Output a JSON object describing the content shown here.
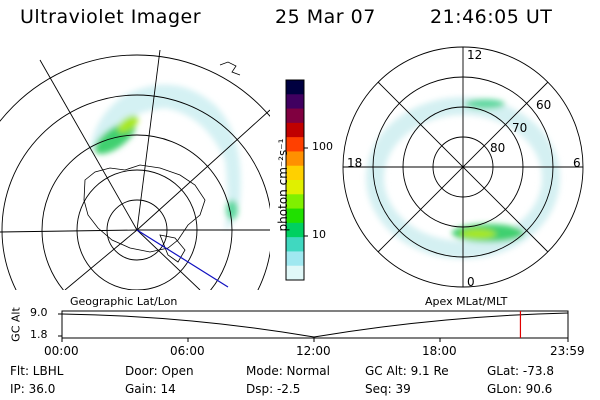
{
  "header": {
    "title": "Ultraviolet Imager",
    "date": "25 Mar 07",
    "time": "21:46:05 UT"
  },
  "colorbar": {
    "unit_label": "photon cm⁻²s⁻¹",
    "ticks": [
      "100",
      "10"
    ],
    "colors": [
      "#000040",
      "#400060",
      "#800040",
      "#c00000",
      "#ff4000",
      "#ff9000",
      "#ffd000",
      "#e0f000",
      "#80f000",
      "#20e000",
      "#00d060",
      "#40d8c0",
      "#a0e8f0",
      "#e0f8f8"
    ]
  },
  "left_panel": {
    "label": "Geographic Lat/Lon"
  },
  "right_panel": {
    "label": "Apex MLat/MLT",
    "mlt_labels": {
      "top": "12",
      "left": "18",
      "right": "6",
      "bottom": "0"
    },
    "lat_labels": [
      "60",
      "70",
      "80"
    ]
  },
  "timeline": {
    "ylabel": "GC Alt",
    "y_ticks": [
      "9.0",
      "1.8"
    ],
    "x_ticks": [
      "00:00",
      "06:00",
      "12:00",
      "18:00",
      "23:59"
    ],
    "marker_color": "#e00000",
    "marker_fraction": 0.906
  },
  "info": {
    "flt": "Flt: LBHL",
    "ip": "IP: 36.0",
    "door": "Door: Open",
    "gain": "Gain: 14",
    "mode": "Mode: Normal",
    "dsp": "Dsp:   -2.5",
    "gcalt": "GC Alt: 9.1 Re",
    "seq": "Seq: 39",
    "glat": "GLat: -73.8",
    "glon": "GLon:  90.6"
  }
}
